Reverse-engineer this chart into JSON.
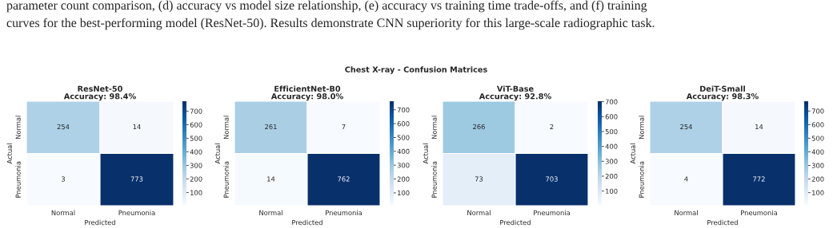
{
  "chart_data": [
    {
      "type": "heatmap",
      "title": "ResNet-50\nAccuracy: 98.4%",
      "xlabel": "Predicted",
      "ylabel": "Actual",
      "categories": [
        "Normal",
        "Pneumonia"
      ],
      "y_categories": [
        "Normal",
        "Pneumonia"
      ],
      "cells": [
        [
          254,
          14
        ],
        [
          3,
          773
        ]
      ],
      "clim": [
        3,
        773
      ],
      "cticks": [
        100,
        200,
        300,
        400,
        500,
        600,
        700
      ],
      "data_labels": true,
      "annotations": [
        "parameter count comparison, (d) accuracy vs model size relationship, (e) accuracy vs training time trade-offs, and (f) training",
        "curves for the best-performing model (ResNet-50). Results demonstrate CNN superiority for this large-scale radiographic task.",
        "Chest X-ray - Confusion Matrices"
      ]
    },
    {
      "type": "heatmap",
      "title": "EfficientNet-B0\nAccuracy: 98.0%",
      "xlabel": "Predicted",
      "ylabel": "Actual",
      "categories": [
        "Normal",
        "Pneumonia"
      ],
      "y_categories": [
        "Normal",
        "Pneumonia"
      ],
      "cells": [
        [
          261,
          7
        ],
        [
          14,
          762
        ]
      ],
      "clim": [
        7,
        762
      ],
      "cticks": [
        100,
        200,
        300,
        400,
        500,
        600,
        700
      ],
      "data_labels": true
    },
    {
      "type": "heatmap",
      "title": "ViT-Base\nAccuracy: 92.8%",
      "xlabel": "Predicted",
      "ylabel": "Actual",
      "categories": [
        "Normal",
        "Pneumonia"
      ],
      "y_categories": [
        "Normal",
        "Pneumonia"
      ],
      "cells": [
        [
          266,
          2
        ],
        [
          73,
          703
        ]
      ],
      "clim": [
        2,
        703
      ],
      "cticks": [
        100,
        200,
        300,
        400,
        500,
        600,
        700
      ],
      "data_labels": true
    },
    {
      "type": "heatmap",
      "title": "DeiT-Small\nAccuracy: 98.3%",
      "xlabel": "Predicted",
      "ylabel": "Actual",
      "categories": [
        "Normal",
        "Pneumonia"
      ],
      "y_categories": [
        "Normal",
        "Pneumonia"
      ],
      "cells": [
        [
          254,
          14
        ],
        [
          4,
          772
        ]
      ],
      "clim": [
        4,
        772
      ],
      "cticks": [
        100,
        200,
        300,
        400,
        500,
        600,
        700
      ],
      "data_labels": true
    }
  ]
}
